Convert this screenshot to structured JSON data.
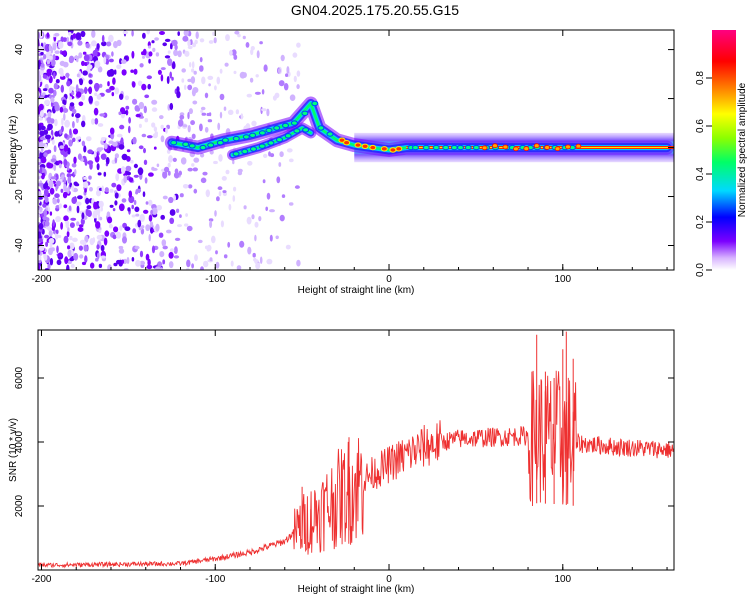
{
  "title": "GN04.2025.175.20.55.G15",
  "chart_data": [
    {
      "type": "heatmap",
      "xlabel": "Height of straight line (km)",
      "ylabel": "Frequency (Hz)",
      "xlim": [
        -202,
        164
      ],
      "ylim": [
        -50,
        48
      ],
      "xticks": [
        "-200",
        "-100",
        "0",
        "100"
      ],
      "yticks": [
        "40",
        "20",
        "0",
        "-20",
        "-40"
      ],
      "colorbar": {
        "label": "Normalized spectral amplitude",
        "range": [
          0,
          1
        ],
        "ticks": [
          "0.0",
          "0.2",
          "0.4",
          "0.6",
          "0.8"
        ],
        "colors": [
          "#ffffff",
          "#d8b4ff",
          "#7b00ff",
          "#0000ff",
          "#00d9ff",
          "#00ff66",
          "#8cff00",
          "#ffff00",
          "#ff8800",
          "#ff0000",
          "#ff0080"
        ]
      },
      "ridge": [
        {
          "x": -125,
          "y": 2
        },
        {
          "x": -110,
          "y": 0
        },
        {
          "x": -95,
          "y": 3
        },
        {
          "x": -80,
          "y": 5
        },
        {
          "x": -65,
          "y": 8
        },
        {
          "x": -55,
          "y": 10
        },
        {
          "x": -45,
          "y": 18
        },
        {
          "x": -40,
          "y": 8
        },
        {
          "x": -30,
          "y": 3
        },
        {
          "x": -20,
          "y": 1
        },
        {
          "x": 0,
          "y": -1
        },
        {
          "x": 10,
          "y": 0
        },
        {
          "x": 160,
          "y": 0
        }
      ],
      "branch": [
        {
          "x": -90,
          "y": -3
        },
        {
          "x": -75,
          "y": 0
        },
        {
          "x": -60,
          "y": 4
        },
        {
          "x": -50,
          "y": 8
        },
        {
          "x": -45,
          "y": 6
        }
      ]
    },
    {
      "type": "line",
      "xlabel": "Height of straight line (km)",
      "ylabel": "SNR (10 * v/v)",
      "xlim": [
        -202,
        164
      ],
      "ylim": [
        0,
        7500
      ],
      "xticks": [
        "-200",
        "-100",
        "0",
        "100"
      ],
      "yticks": [
        "6000",
        "4000",
        "2000"
      ],
      "color": "#ee3030",
      "envelope": [
        {
          "x": -202,
          "y": 150
        },
        {
          "x": -120,
          "y": 200
        },
        {
          "x": -100,
          "y": 350
        },
        {
          "x": -80,
          "y": 550
        },
        {
          "x": -60,
          "y": 900
        },
        {
          "x": -50,
          "y": 1400
        },
        {
          "x": -40,
          "y": 1800
        },
        {
          "x": -30,
          "y": 2200
        },
        {
          "x": -20,
          "y": 2600
        },
        {
          "x": -10,
          "y": 3000
        },
        {
          "x": 0,
          "y": 3300
        },
        {
          "x": 10,
          "y": 3600
        },
        {
          "x": 20,
          "y": 3850
        },
        {
          "x": 30,
          "y": 4000
        },
        {
          "x": 40,
          "y": 4100
        },
        {
          "x": 60,
          "y": 4150
        },
        {
          "x": 80,
          "y": 4200
        },
        {
          "x": 100,
          "y": 4100
        },
        {
          "x": 110,
          "y": 3950
        },
        {
          "x": 130,
          "y": 3850
        },
        {
          "x": 164,
          "y": 3750
        }
      ],
      "peaks": [
        {
          "x": -50,
          "y": 2600
        },
        {
          "x": -45,
          "y": 1900
        },
        {
          "x": -23,
          "y": 4150
        },
        {
          "x": 85,
          "y": 7350
        },
        {
          "x": 90,
          "y": 6200
        },
        {
          "x": 95,
          "y": 6000
        },
        {
          "x": 100,
          "y": 6900
        },
        {
          "x": 102,
          "y": 7450
        },
        {
          "x": 106,
          "y": 6600
        }
      ]
    }
  ]
}
